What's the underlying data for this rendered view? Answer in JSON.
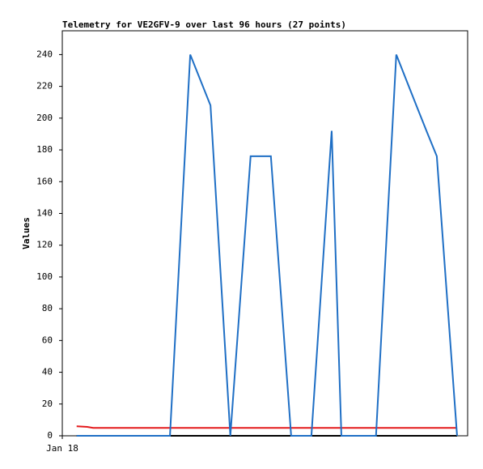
{
  "chart_data": {
    "type": "line",
    "title": "Telemetry for VE2GFV-9 over last 96 hours (27 points)",
    "y_label": "Values",
    "x": [
      3.4,
      5.9,
      7.3,
      10,
      13,
      15.5,
      18,
      21,
      25.5,
      30.3,
      35.1,
      39.8,
      44.6,
      49.4,
      54.2,
      56.6,
      59.0,
      61.4,
      63.8,
      66.1,
      70,
      74.3,
      79.1,
      84,
      86.4,
      88.7,
      93.5
    ],
    "xlim": [
      0,
      96
    ],
    "xticks": [
      {
        "value": 0,
        "label": "Jan 18"
      }
    ],
    "ylim": [
      0,
      255
    ],
    "yticks": [
      0,
      20,
      40,
      60,
      80,
      100,
      120,
      140,
      160,
      180,
      200,
      220,
      240
    ],
    "series": [
      {
        "color": "#000000",
        "values": [
          0,
          0,
          0,
          0,
          0,
          0,
          0,
          0,
          0,
          0,
          0,
          0,
          0,
          0,
          0,
          0,
          0,
          0,
          0,
          0,
          0,
          0,
          0,
          0,
          0,
          0,
          0
        ]
      },
      {
        "color": "#e41a1c",
        "values": [
          6,
          5.6,
          5,
          5,
          5,
          5,
          5,
          5,
          5,
          5,
          5,
          5,
          5,
          5,
          5,
          5,
          5,
          5,
          5,
          5,
          5,
          5,
          5,
          5,
          5,
          5,
          5
        ]
      },
      {
        "color": "#1f6fc5",
        "values": [
          0,
          0,
          0,
          0,
          0,
          0,
          0,
          0,
          0,
          240,
          208,
          0,
          176,
          176,
          0,
          0,
          0,
          96,
          192,
          0,
          0,
          0,
          240,
          207,
          191,
          176,
          0
        ]
      }
    ]
  }
}
